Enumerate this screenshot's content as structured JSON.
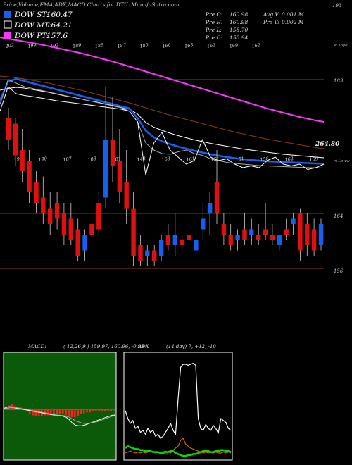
{
  "header": {
    "title": "Price,Volume,EMA,ADX,MACD Charts for DTIL MunafaSutra.com",
    "ohlc": [
      {
        "label": "Pre O:",
        "value": "160.98"
      },
      {
        "label": "Pre H:",
        "value": "160.98"
      },
      {
        "label": "Pre L:",
        "value": "158.70"
      },
      {
        "label": "Pre C:",
        "value": "158.94"
      }
    ],
    "volume": [
      {
        "label": "Avg V:",
        "value": "0.001 M"
      },
      {
        "label": "Pre V:",
        "value": "0.002 M"
      }
    ]
  },
  "legend": [
    {
      "label": "DOW ST:",
      "value": "160.47",
      "color": "#1560f0"
    },
    {
      "label": "DOW MT:",
      "value": "164.21",
      "color": "#ffffff"
    },
    {
      "label": "DOW PT:",
      "value": "157.6",
      "color": "#ff33ff"
    }
  ],
  "colors": {
    "ema_blue": "#1560f0",
    "ema_magenta": "#ff33ff",
    "ema_brown": "#8a3d12",
    "candle_up": "#1560f0",
    "candle_down": "#e01010",
    "macd_bg": "#0a5a0a",
    "hist": "#ff2020",
    "adx_white": "#ffffff",
    "adx_green": "#00dd00",
    "adx_orange": "#cc6600"
  },
  "chart_data": [
    {
      "type": "line",
      "panel": "price-ema",
      "y_labels": [
        "193",
        "183",
        "264.80"
      ],
      "right_note": "< Topa",
      "top_price_labels": [
        "202",
        "199",
        "192",
        "189",
        "185",
        "187",
        "180",
        "160",
        "165",
        "162",
        "169",
        "162"
      ],
      "series": [
        {
          "color": "#ff33ff",
          "values": [
            195,
            194.6,
            194.2,
            193.8,
            193.4,
            193,
            192.5,
            192,
            191.5,
            191,
            190.5,
            189.9,
            189.3,
            188.7,
            188.1,
            187.4,
            186.7,
            186,
            185.3,
            184.6,
            183.9,
            183.2,
            182.5,
            181.8,
            181.1,
            180.4,
            179.7,
            179,
            178.3,
            177.6,
            176.9,
            176.2,
            175.5,
            174.8,
            174.2,
            173.6,
            173,
            172.4,
            171.9,
            171.4,
            171
          ]
        },
        {
          "color": "#8a3d12",
          "values": [
            184,
            183.8,
            183.5,
            183.2,
            182.8,
            182.4,
            182,
            181.5,
            181,
            180.5,
            180,
            179.4,
            178.8,
            178.2,
            177.6,
            177,
            176.4,
            175.7,
            175,
            174.3,
            173.6,
            172.9,
            172.3,
            171.7,
            171.1,
            170.5,
            169.9,
            169.3,
            168.7,
            168.1,
            167.6,
            167.1,
            166.6,
            166.1,
            165.7,
            165.3,
            164.9,
            164.5,
            164.1,
            163.7,
            163.4
          ]
        },
        {
          "color": "#ffffff",
          "values": [
            180,
            180.5,
            180.8,
            180.6,
            180.2,
            179.8,
            179.4,
            178.9,
            178.4,
            178,
            177.5,
            177,
            176.6,
            176.1,
            175.6,
            175.1,
            174.6,
            173.2,
            170.8,
            169.5,
            168.6,
            167.8,
            167.1,
            166.5,
            165.9,
            165.4,
            164.9,
            164.5,
            164.1,
            163.7,
            163.3,
            163,
            162.7,
            162.4,
            162.1,
            161.8,
            161.6,
            161.4,
            161.2,
            161,
            160.8
          ]
        },
        {
          "color": "#1560f0",
          "values": [
            177,
            182.5,
            183.2,
            182.6,
            182,
            181.4,
            180.8,
            180.2,
            179.6,
            179,
            178.4,
            177.8,
            177.2,
            176.6,
            176,
            175.4,
            174.8,
            172,
            168.5,
            166.6,
            165.5,
            164.7,
            164,
            163.4,
            162.8,
            162.3,
            161.8,
            161.4,
            161,
            160.7,
            160.4,
            160.2,
            160,
            159.8,
            159.7,
            159.6,
            159.5,
            159.4,
            159.3,
            159.2,
            159.1
          ]
        },
        {
          "color": "#aaaaaa",
          "values": [
            176,
            183,
            182,
            181,
            180.5,
            180,
            179.5,
            179,
            178.5,
            178,
            177.5,
            177,
            176.5,
            176,
            175.5,
            175,
            174,
            171,
            165,
            163,
            162,
            161.8,
            162.5,
            163,
            162,
            161.5,
            160.5,
            160,
            159.5,
            159.2,
            159,
            158.8,
            158.6,
            158.5,
            158.4,
            158.3,
            158.2,
            158.1,
            158,
            158,
            157.9
          ]
        },
        {
          "color": "#ffffff",
          "values": [
            174,
            181,
            179,
            178.5,
            178.2,
            177.8,
            177.4,
            177,
            176.7,
            176.4,
            176.1,
            175.8,
            175.5,
            175.2,
            174.9,
            174.6,
            174,
            171,
            156,
            165,
            168,
            163,
            161,
            159,
            160,
            166,
            161,
            160,
            160.5,
            159,
            158,
            158.5,
            158,
            160,
            161,
            159,
            158.5,
            159,
            157.5,
            158,
            159
          ]
        }
      ]
    },
    {
      "type": "bar",
      "panel": "candles",
      "y_labels": [
        "164",
        "156"
      ],
      "right_note": "< Loww",
      "price_labels": [
        "196",
        "190",
        "187",
        "188",
        "181",
        "148",
        "163",
        "161",
        "151",
        "151",
        "158",
        "162",
        "159"
      ],
      "candles": [
        {
          "o": 182,
          "h": 184,
          "l": 176,
          "c": 178
        },
        {
          "o": 181,
          "h": 182,
          "l": 173,
          "c": 175
        },
        {
          "o": 176,
          "h": 180,
          "l": 170,
          "c": 172
        },
        {
          "o": 174,
          "h": 176,
          "l": 166,
          "c": 168
        },
        {
          "o": 170,
          "h": 172,
          "l": 164,
          "c": 166
        },
        {
          "o": 167,
          "h": 171,
          "l": 162,
          "c": 164
        },
        {
          "o": 165,
          "h": 168,
          "l": 160,
          "c": 162
        },
        {
          "o": 166,
          "h": 168,
          "l": 161,
          "c": 163
        },
        {
          "o": 164,
          "h": 166,
          "l": 158,
          "c": 160
        },
        {
          "o": 163,
          "h": 166,
          "l": 158,
          "c": 159
        },
        {
          "o": 161,
          "h": 163,
          "l": 155,
          "c": 156
        },
        {
          "o": 157,
          "h": 161,
          "l": 155,
          "c": 160
        },
        {
          "o": 162,
          "h": 164,
          "l": 159,
          "c": 160
        },
        {
          "o": 166,
          "h": 168,
          "l": 160,
          "c": 161
        },
        {
          "o": 167,
          "h": 188,
          "l": 165,
          "c": 178
        },
        {
          "o": 178,
          "h": 186,
          "l": 170,
          "c": 173
        },
        {
          "o": 174,
          "h": 180,
          "l": 166,
          "c": 168
        },
        {
          "o": 170,
          "h": 176,
          "l": 162,
          "c": 165
        },
        {
          "o": 165,
          "h": 168,
          "l": 154,
          "c": 156
        },
        {
          "o": 158,
          "h": 160,
          "l": 154,
          "c": 155
        },
        {
          "o": 156,
          "h": 158,
          "l": 154,
          "c": 157
        },
        {
          "o": 157,
          "h": 158,
          "l": 154,
          "c": 155
        },
        {
          "o": 156,
          "h": 160,
          "l": 155,
          "c": 159
        },
        {
          "o": 160,
          "h": 162,
          "l": 157,
          "c": 158
        },
        {
          "o": 158,
          "h": 164,
          "l": 156,
          "c": 160
        },
        {
          "o": 159,
          "h": 160,
          "l": 157,
          "c": 158
        },
        {
          "o": 160,
          "h": 162,
          "l": 157,
          "c": 159
        },
        {
          "o": 157,
          "h": 160,
          "l": 154,
          "c": 159
        },
        {
          "o": 161,
          "h": 166,
          "l": 159,
          "c": 163
        },
        {
          "o": 164,
          "h": 168,
          "l": 160,
          "c": 166
        },
        {
          "o": 170,
          "h": 176,
          "l": 162,
          "c": 164
        },
        {
          "o": 162,
          "h": 164,
          "l": 158,
          "c": 160
        },
        {
          "o": 160,
          "h": 162,
          "l": 157,
          "c": 158
        },
        {
          "o": 159,
          "h": 161,
          "l": 157,
          "c": 160
        },
        {
          "o": 161,
          "h": 164,
          "l": 158,
          "c": 159
        },
        {
          "o": 160,
          "h": 163,
          "l": 158,
          "c": 161
        },
        {
          "o": 160,
          "h": 162,
          "l": 158,
          "c": 159
        },
        {
          "o": 161,
          "h": 166,
          "l": 159,
          "c": 160
        },
        {
          "o": 160,
          "h": 162,
          "l": 158,
          "c": 159
        },
        {
          "o": 158,
          "h": 160,
          "l": 157,
          "c": 160
        },
        {
          "o": 161,
          "h": 163,
          "l": 159,
          "c": 160
        },
        {
          "o": 162,
          "h": 164,
          "l": 160,
          "c": 163
        },
        {
          "o": 164,
          "h": 165,
          "l": 155,
          "c": 157
        },
        {
          "o": 162,
          "h": 164,
          "l": 156,
          "c": 158
        },
        {
          "o": 161,
          "h": 163,
          "l": 156,
          "c": 157
        },
        {
          "o": 158,
          "h": 163,
          "l": 157,
          "c": 162
        }
      ]
    },
    {
      "type": "line",
      "panel": "macd",
      "label": "MACD:",
      "params": "( 12,26,9 ) 159.97, 160.96, -0.99",
      "series": [
        {
          "color": "#ffffff",
          "values": [
            0.2,
            0.4,
            0.5,
            0.3,
            0.2,
            0.1,
            0,
            -0.1,
            -0.2,
            -0.3,
            -0.4,
            -0.5,
            -0.6,
            -0.7,
            -0.8,
            -0.9,
            -1,
            -1.05,
            -1.1,
            -1.2,
            -1.4,
            -1.8,
            -2.4,
            -2.8,
            -2.9,
            -2.9,
            -2.8,
            -2.6,
            -2.4,
            -2.2,
            -2,
            -1.8,
            -1.6,
            -1.4,
            -1.2,
            -1.05,
            -1
          ]
        },
        {
          "color": "#aaaaaa",
          "values": [
            0.1,
            0.2,
            0.3,
            0.3,
            0.3,
            0.2,
            0.1,
            0,
            -0.1,
            -0.2,
            -0.3,
            -0.4,
            -0.5,
            -0.6,
            -0.7,
            -0.8,
            -0.9,
            -1,
            -1.05,
            -1.1,
            -1.2,
            -1.4,
            -1.7,
            -2,
            -2.2,
            -2.4,
            -2.5,
            -2.5,
            -2.4,
            -2.3,
            -2.2,
            -2,
            -1.8,
            -1.6,
            -1.4,
            -1.2,
            -1.1
          ]
        }
      ],
      "histogram": [
        0.3,
        0.4,
        0.5,
        0.4,
        0.3,
        0.2,
        0.1,
        0.1,
        -0.5,
        -0.6,
        -0.7,
        -0.7,
        -0.7,
        -0.6,
        -0.6,
        -0.6,
        -0.5,
        -0.5,
        -0.5,
        -0.5,
        -0.6,
        -0.7,
        -0.8,
        -0.8,
        -0.7,
        -0.5,
        -0.4,
        -0.3,
        -0.3,
        -0.2,
        -0.2,
        -0.2,
        -0.2,
        -0.2,
        -0.2,
        -0.15,
        -0.1
      ]
    },
    {
      "type": "line",
      "panel": "adx",
      "label": "ADX",
      "params": "(14 day) 7, +12, -10",
      "series": [
        {
          "color": "#ffffff",
          "values": [
            48,
            40,
            35,
            38,
            30,
            32,
            26,
            28,
            24,
            30,
            26,
            28,
            22,
            24,
            20,
            22,
            26,
            30,
            35,
            28,
            24,
            60,
            92,
            95,
            95,
            94,
            95,
            96,
            94,
            40,
            30,
            28,
            34,
            30,
            28,
            33,
            30,
            25,
            40,
            38,
            36,
            30,
            28
          ]
        },
        {
          "color": "#cc6600",
          "values": [
            5,
            6,
            7,
            6,
            5,
            6,
            5,
            6,
            5,
            6,
            7,
            6,
            5,
            6,
            5,
            6,
            7,
            6,
            5,
            8,
            10,
            12,
            18,
            20,
            14,
            12,
            10,
            9,
            8,
            7,
            6,
            5,
            6,
            5,
            6,
            5,
            6,
            5,
            5,
            6,
            5,
            6,
            5
          ]
        },
        {
          "color": "#00dd00",
          "values": [
            10,
            12,
            11,
            10,
            9,
            9,
            8,
            8,
            7,
            7,
            7,
            6,
            6,
            6,
            5,
            5,
            6,
            6,
            7,
            7,
            5,
            4,
            3,
            2,
            2,
            3,
            3,
            4,
            4,
            5,
            6,
            7,
            7,
            7,
            6,
            6,
            7,
            7,
            8,
            8,
            7,
            7,
            6
          ]
        }
      ]
    }
  ]
}
